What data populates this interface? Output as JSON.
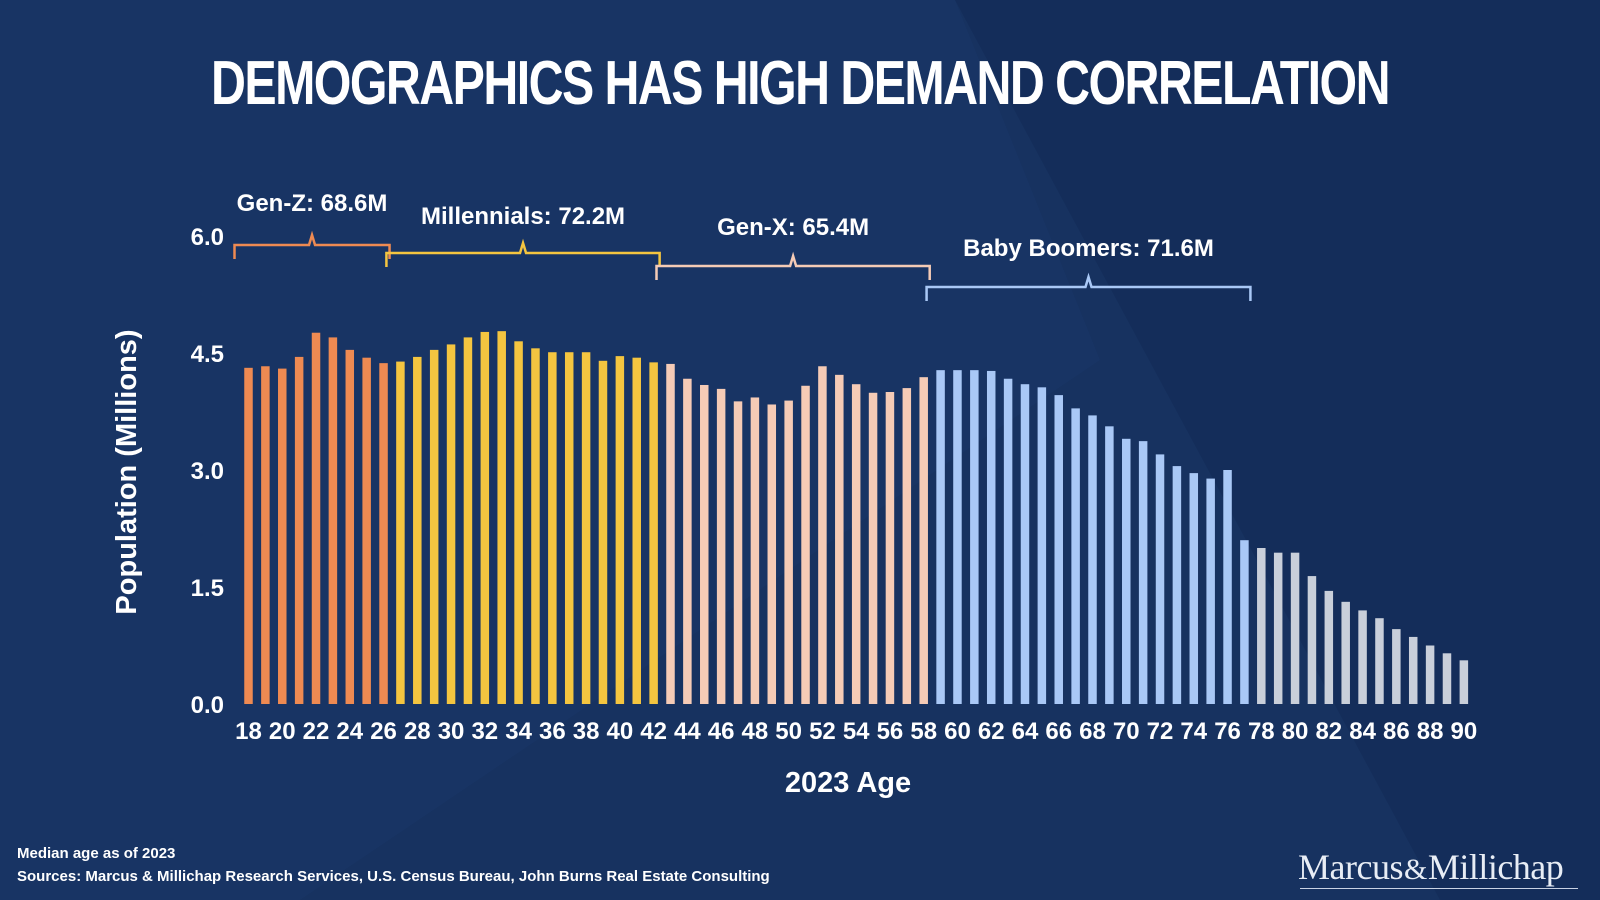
{
  "title": "DEMOGRAPHICS HAS HIGH DEMAND CORRELATION",
  "footnote": {
    "line1": "Median age as of 2023",
    "line2": "Sources: Marcus & Millichap Research Services, U.S. Census Bureau, John Burns Real Estate Consulting"
  },
  "logo": {
    "left": "Marcus",
    "amp": "&",
    "right": "Millichap"
  },
  "colors": {
    "background": "#173260",
    "gen_z": "#ee8a52",
    "millennials": "#f4c540",
    "gen_x": "#f5cbb6",
    "baby_boomers": "#a9c8f6",
    "older": "#c9cfda"
  },
  "chart_data": {
    "type": "bar",
    "xlabel": "2023 Age",
    "ylabel": "Population (Millions)",
    "ylim": [
      0,
      6
    ],
    "yticks": [
      "0.0",
      "1.5",
      "3.0",
      "4.5",
      "6.0"
    ],
    "grid": false,
    "x": [
      18,
      19,
      20,
      21,
      22,
      23,
      24,
      25,
      26,
      27,
      28,
      29,
      30,
      31,
      32,
      33,
      34,
      35,
      36,
      37,
      38,
      39,
      40,
      41,
      42,
      43,
      44,
      45,
      46,
      47,
      48,
      49,
      50,
      51,
      52,
      53,
      54,
      55,
      56,
      57,
      58,
      59,
      60,
      61,
      62,
      63,
      64,
      65,
      66,
      67,
      68,
      69,
      70,
      71,
      72,
      73,
      74,
      75,
      76,
      77,
      78,
      79,
      80,
      81,
      82,
      83,
      84,
      85,
      86,
      87,
      88,
      89,
      90
    ],
    "xticks": [
      "18",
      "20",
      "22",
      "24",
      "26",
      "28",
      "30",
      "32",
      "34",
      "36",
      "38",
      "40",
      "42",
      "44",
      "46",
      "48",
      "50",
      "52",
      "54",
      "56",
      "58",
      "60",
      "62",
      "64",
      "66",
      "68",
      "70",
      "72",
      "74",
      "76",
      "78",
      "80",
      "82",
      "84",
      "86",
      "88",
      "90"
    ],
    "values": [
      4.31,
      4.33,
      4.3,
      4.45,
      4.76,
      4.7,
      4.54,
      4.44,
      4.37,
      4.39,
      4.45,
      4.54,
      4.61,
      4.7,
      4.77,
      4.78,
      4.65,
      4.56,
      4.51,
      4.51,
      4.51,
      4.4,
      4.46,
      4.44,
      4.38,
      4.36,
      4.17,
      4.09,
      4.04,
      3.88,
      3.93,
      3.84,
      3.89,
      4.08,
      4.33,
      4.22,
      4.1,
      3.99,
      4.0,
      4.05,
      4.19,
      4.28,
      4.28,
      4.28,
      4.27,
      4.17,
      4.1,
      4.06,
      3.96,
      3.79,
      3.7,
      3.56,
      3.4,
      3.37,
      3.2,
      3.05,
      2.96,
      2.89,
      3.0,
      2.1,
      2.0,
      1.94,
      1.94,
      1.64,
      1.45,
      1.31,
      1.2,
      1.1,
      0.96,
      0.86,
      0.75,
      0.65,
      0.56
    ],
    "groups": [
      {
        "name": "Gen-Z",
        "label": "Gen-Z: 68.6M",
        "from": 18,
        "to": 26,
        "color": "#ee8a52"
      },
      {
        "name": "Millennials",
        "label": "Millennials: 72.2M",
        "from": 27,
        "to": 42,
        "color": "#f4c540"
      },
      {
        "name": "Gen-X",
        "label": "Gen-X: 65.4M",
        "from": 43,
        "to": 58,
        "color": "#f5cbb6"
      },
      {
        "name": "Baby Boomers",
        "label": "Baby Boomers: 71.6M",
        "from": 59,
        "to": 77,
        "color": "#a9c8f6"
      },
      {
        "name": "",
        "label": "",
        "from": 78,
        "to": 90,
        "color": "#c9cfda"
      }
    ]
  }
}
